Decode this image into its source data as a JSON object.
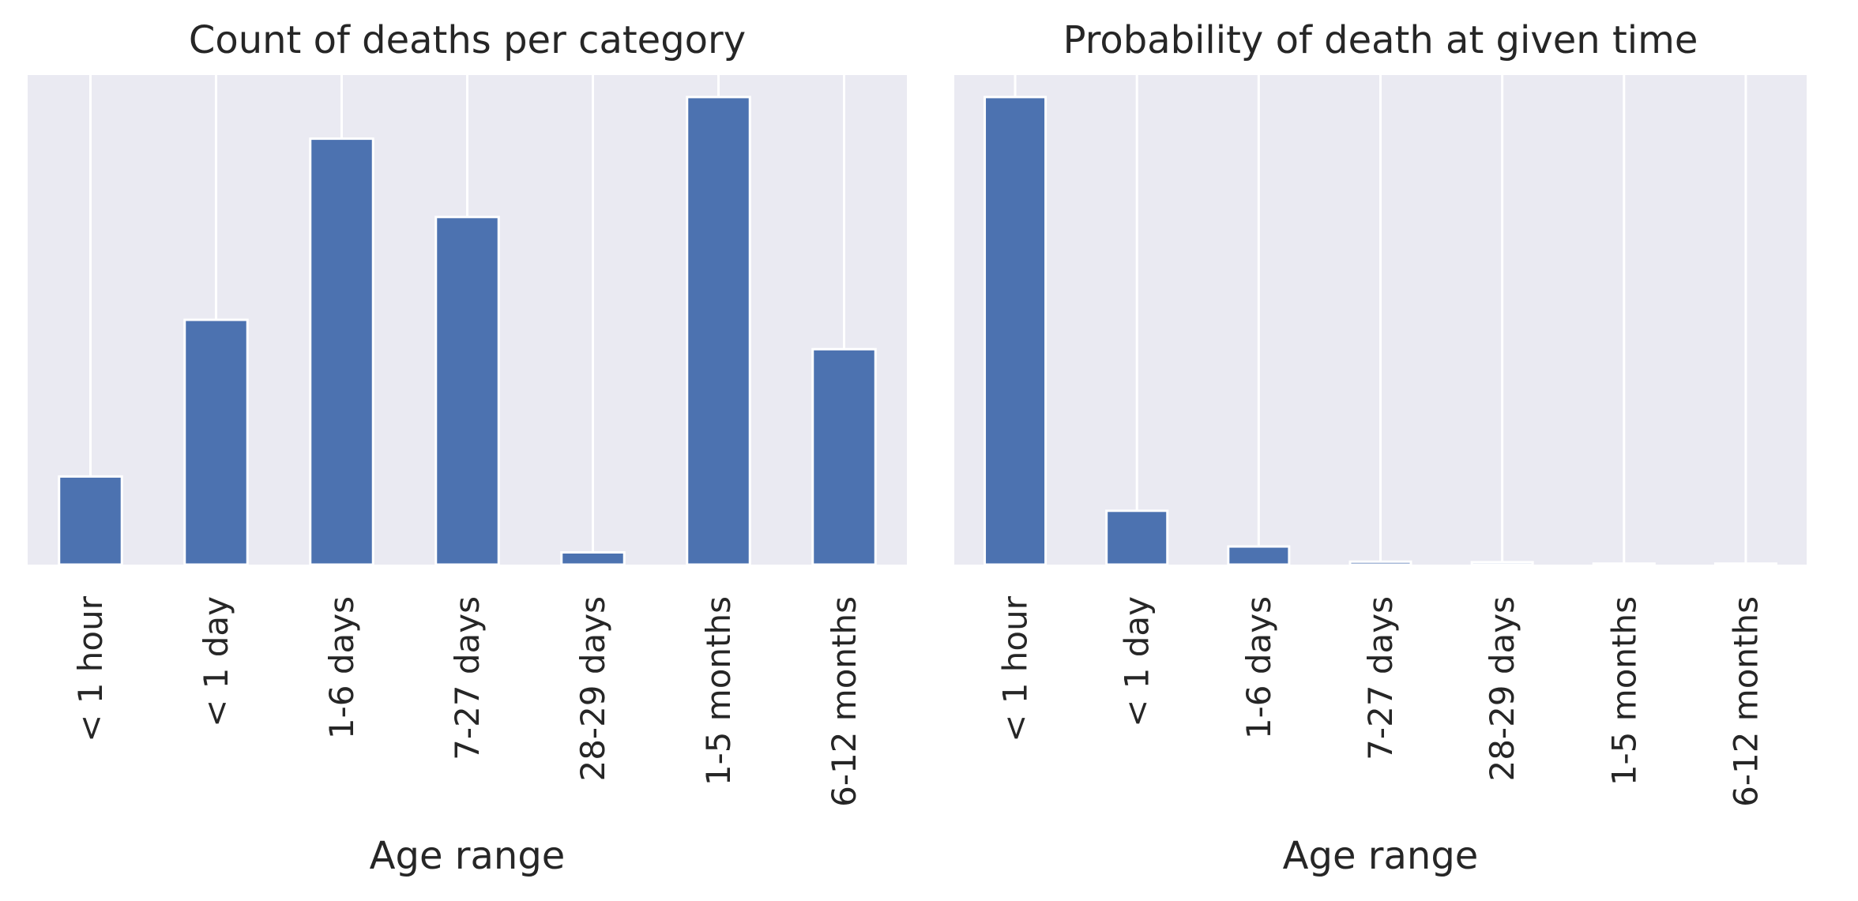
{
  "chart_data": [
    {
      "type": "bar",
      "title": "Count of deaths per category",
      "xlabel": "Age range",
      "ylabel": "",
      "categories": [
        "< 1 hour",
        "< 1 day",
        "1-6 days",
        "7-27 days",
        "28-29 days",
        "1-5 months",
        "6-12 months"
      ],
      "values": [
        18,
        50,
        87,
        71,
        2.5,
        95.5,
        44
      ],
      "ylim": [
        0,
        100
      ],
      "y_ticks_visible": false,
      "grid": "vertical",
      "color": "#4C72B0",
      "background": "#EAEAF2"
    },
    {
      "type": "bar",
      "title": "Probability of death at given time",
      "xlabel": "Age range",
      "ylabel": "",
      "categories": [
        "< 1 hour",
        "< 1 day",
        "1-6 days",
        "7-27 days",
        "28-29 days",
        "1-5 months",
        "6-12 months"
      ],
      "values": [
        95.5,
        11,
        3.7,
        0.6,
        0.5,
        0.2,
        0.2
      ],
      "ylim": [
        0,
        100
      ],
      "y_ticks_visible": false,
      "grid": "vertical",
      "color": "#4C72B0",
      "background": "#EAEAF2"
    }
  ]
}
